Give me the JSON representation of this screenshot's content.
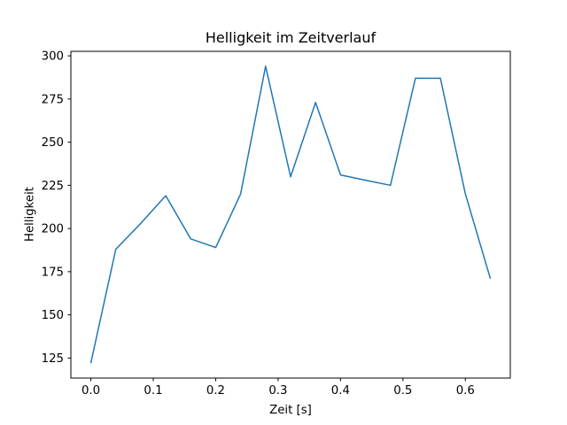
{
  "figure": {
    "background": "#ffffff"
  },
  "chart_data": {
    "type": "line",
    "title": "Helligkeit im Zeitverlauf",
    "xlabel": "Zeit [s]",
    "ylabel": "Helligkeit",
    "x": [
      0.0,
      0.04,
      0.08,
      0.12,
      0.16,
      0.2,
      0.24,
      0.28,
      0.32,
      0.36,
      0.4,
      0.44,
      0.48,
      0.52,
      0.56,
      0.6,
      0.64
    ],
    "values": [
      122,
      188,
      203,
      219,
      194,
      189,
      220,
      294,
      230,
      273,
      231,
      228,
      225,
      287,
      287,
      220,
      171
    ],
    "xlim": [
      -0.032,
      0.672
    ],
    "ylim": [
      113.4,
      302.6
    ],
    "xticks": {
      "values": [
        0.0,
        0.1,
        0.2,
        0.3,
        0.4,
        0.5,
        0.6
      ],
      "labels": [
        "0.0",
        "0.1",
        "0.2",
        "0.3",
        "0.4",
        "0.5",
        "0.6"
      ]
    },
    "yticks": {
      "values": [
        125,
        150,
        175,
        200,
        225,
        250,
        275,
        300
      ],
      "labels": [
        "125",
        "150",
        "175",
        "200",
        "225",
        "250",
        "275",
        "300"
      ]
    },
    "line_color": "#1f77b4",
    "axes_color": "#000000",
    "grid": false,
    "legend": null
  }
}
